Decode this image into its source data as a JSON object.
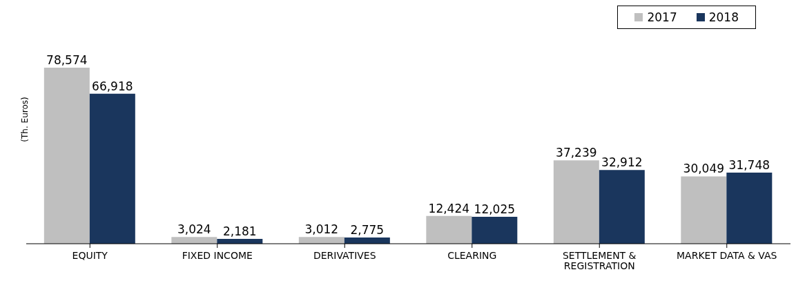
{
  "chart_data": {
    "type": "bar",
    "ylabel": "(Th. Euros)",
    "categories": [
      "EQUITY",
      "FIXED INCOME",
      "DERIVATIVES",
      "CLEARING",
      "SETTLEMENT & REGISTRATION",
      "MARKET DATA & VAS"
    ],
    "series": [
      {
        "name": "2017",
        "color": "#bfbfbf",
        "values": [
          78574,
          3024,
          3012,
          12424,
          37239,
          30049
        ],
        "value_labels": [
          "78,574",
          "3,024",
          "3,012",
          "12,424",
          "37,239",
          "30,049"
        ]
      },
      {
        "name": "2018",
        "color": "#1a365d",
        "values": [
          66918,
          2181,
          2775,
          12025,
          32912,
          31748
        ],
        "value_labels": [
          "66,918",
          "2,181",
          "2,775",
          "12,025",
          "32,912",
          "31,748"
        ]
      }
    ],
    "legend": "top right",
    "grid": false
  }
}
